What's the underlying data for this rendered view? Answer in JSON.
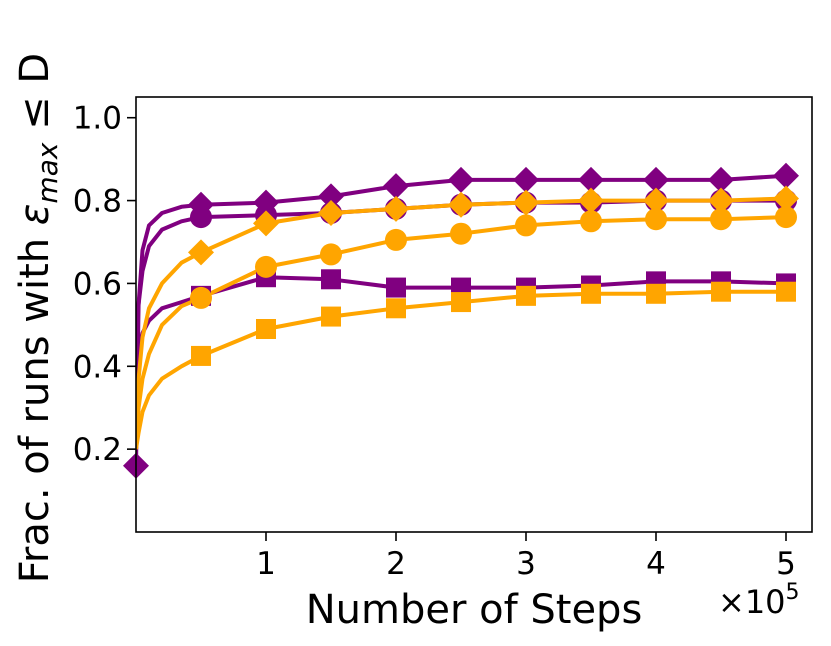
{
  "chart_data": {
    "type": "line",
    "title": "",
    "xlabel": "Number of Steps",
    "ylabel": "Frac. of runs with εmax ≤ D",
    "ylabel_main": "Frac. of runs with ",
    "ylabel_symbol": "ε",
    "ylabel_subscript": "max",
    "ylabel_tail": " ≤ D",
    "x_multiplier_label": "×10",
    "x_multiplier_exponent": "5",
    "xlim": [
      0,
      520000
    ],
    "ylim": [
      0,
      1.05
    ],
    "xticks": [
      100000,
      200000,
      300000,
      400000,
      500000
    ],
    "xtick_labels": [
      "1",
      "2",
      "3",
      "4",
      "5"
    ],
    "yticks": [
      0.2,
      0.4,
      0.6,
      0.8,
      1.0
    ],
    "ytick_labels": [
      "0.2",
      "0.4",
      "0.6",
      "0.8",
      "1.0"
    ],
    "grid": false,
    "legend": "none",
    "colors": {
      "purple": "#800080",
      "orange": "#ffa500"
    },
    "series": [
      {
        "color": "purple",
        "marker": "diamond",
        "x": [
          0,
          2000,
          5000,
          10000,
          20000,
          35000,
          50000,
          100000,
          150000,
          200000,
          250000,
          300000,
          350000,
          400000,
          450000,
          500000
        ],
        "values": [
          0.16,
          0.55,
          0.68,
          0.74,
          0.77,
          0.785,
          0.79,
          0.795,
          0.81,
          0.835,
          0.85,
          0.85,
          0.85,
          0.85,
          0.85,
          0.86
        ]
      },
      {
        "color": "purple",
        "marker": "circle",
        "x": [
          0,
          2000,
          5000,
          10000,
          20000,
          35000,
          50000,
          100000,
          150000,
          200000,
          250000,
          300000,
          350000,
          400000,
          450000,
          500000
        ],
        "values": [
          0.47,
          0.55,
          0.63,
          0.69,
          0.73,
          0.75,
          0.76,
          0.765,
          0.77,
          0.78,
          0.79,
          0.795,
          0.795,
          0.8,
          0.8,
          0.8
        ]
      },
      {
        "color": "purple",
        "marker": "square",
        "x": [
          0,
          2000,
          5000,
          10000,
          20000,
          35000,
          50000,
          100000,
          150000,
          200000,
          250000,
          300000,
          350000,
          400000,
          450000,
          500000
        ],
        "values": [
          0.4,
          0.44,
          0.48,
          0.51,
          0.54,
          0.555,
          0.57,
          0.615,
          0.61,
          0.59,
          0.59,
          0.59,
          0.595,
          0.605,
          0.605,
          0.6
        ]
      },
      {
        "color": "orange",
        "marker": "diamond",
        "x": [
          0,
          2000,
          5000,
          10000,
          20000,
          35000,
          50000,
          100000,
          150000,
          200000,
          250000,
          300000,
          350000,
          400000,
          450000,
          500000
        ],
        "values": [
          0.2,
          0.37,
          0.47,
          0.54,
          0.6,
          0.65,
          0.675,
          0.745,
          0.77,
          0.78,
          0.79,
          0.795,
          0.8,
          0.8,
          0.8,
          0.805
        ]
      },
      {
        "color": "orange",
        "marker": "circle",
        "x": [
          0,
          2000,
          5000,
          10000,
          20000,
          35000,
          50000,
          100000,
          150000,
          200000,
          250000,
          300000,
          350000,
          400000,
          450000,
          500000
        ],
        "values": [
          0.2,
          0.3,
          0.37,
          0.43,
          0.5,
          0.545,
          0.565,
          0.64,
          0.67,
          0.705,
          0.72,
          0.74,
          0.75,
          0.755,
          0.755,
          0.76
        ]
      },
      {
        "color": "orange",
        "marker": "square",
        "x": [
          0,
          2000,
          5000,
          10000,
          20000,
          35000,
          50000,
          100000,
          150000,
          200000,
          250000,
          300000,
          350000,
          400000,
          450000,
          500000
        ],
        "values": [
          0.2,
          0.24,
          0.29,
          0.33,
          0.37,
          0.4,
          0.425,
          0.49,
          0.52,
          0.54,
          0.555,
          0.57,
          0.575,
          0.575,
          0.58,
          0.58
        ]
      }
    ]
  }
}
